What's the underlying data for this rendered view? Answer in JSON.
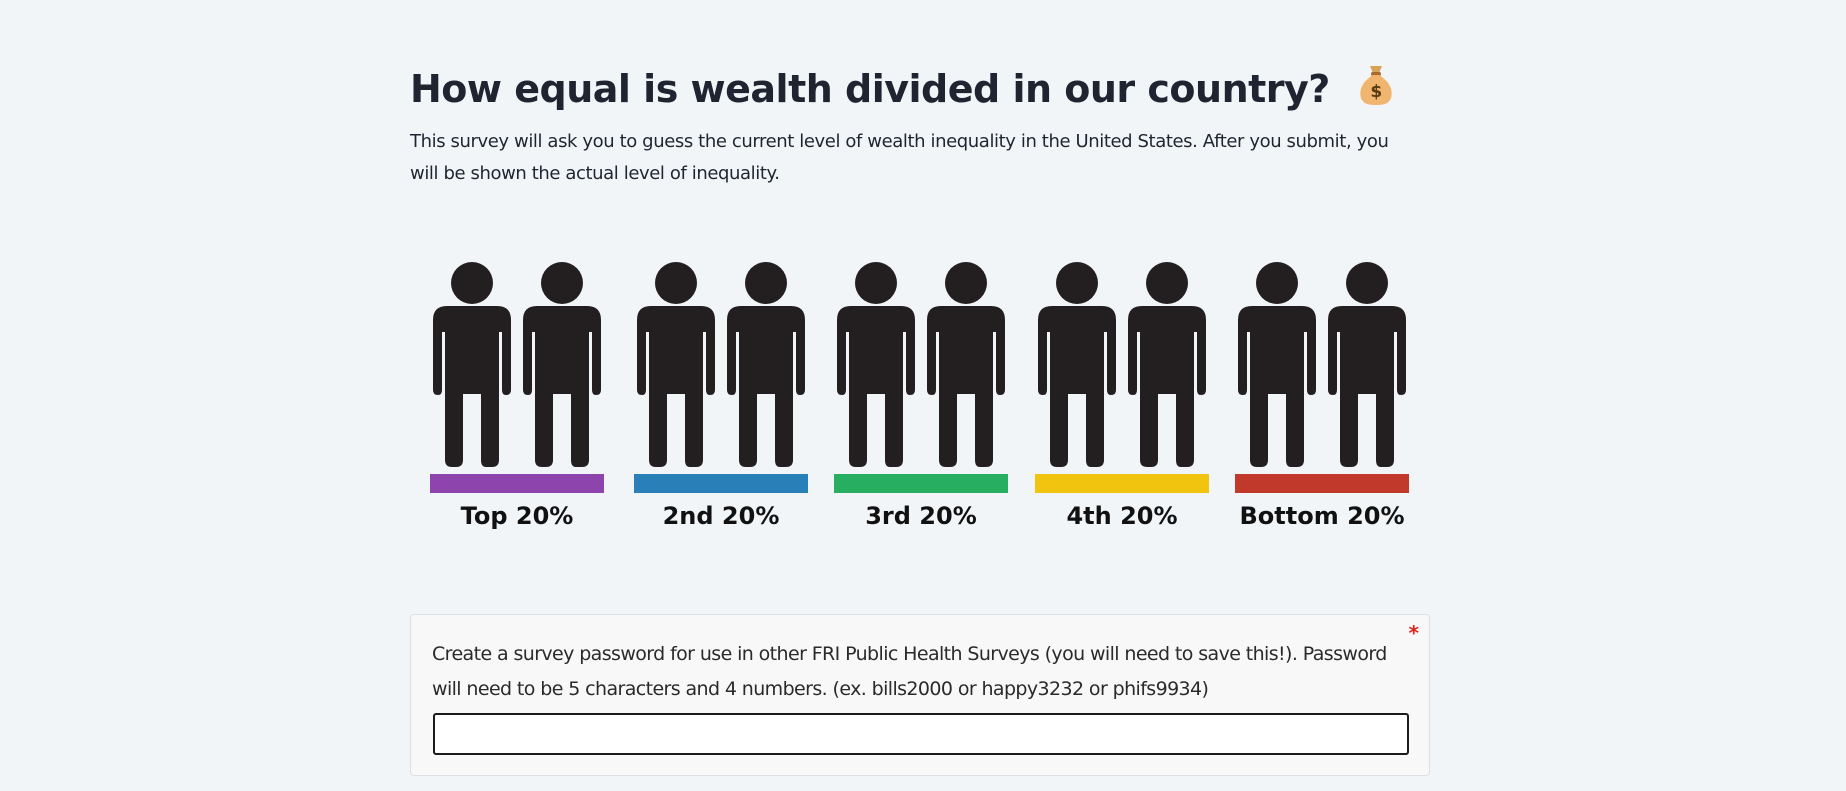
{
  "page": {
    "title": "How equal is wealth divided in our country?",
    "title_emoji": "money-bag-icon",
    "intro": "This survey will ask you to guess the current level of wealth inequality in the United States. After you submit, you will be shown the actual level of inequality."
  },
  "groups": [
    {
      "label": "Top 20%",
      "color": "#8e44ad"
    },
    {
      "label": "2nd 20%",
      "color": "#2980b9"
    },
    {
      "label": "3rd 20%",
      "color": "#27ae60"
    },
    {
      "label": "4th 20%",
      "color": "#f1c40f"
    },
    {
      "label": "Bottom 20%",
      "color": "#c0392b"
    }
  ],
  "question": {
    "text": "Create a survey password for use in other FRI Public Health Surveys (you will need to save this!). Password will need to be 5 characters and 4 numbers. (ex. bills2000 or happy3232 or phifs9934)",
    "required_marker": "*",
    "value": "",
    "placeholder": ""
  },
  "colors": {
    "background": "#f2f5f8",
    "figure": "#231f20",
    "required": "#e0201b"
  }
}
